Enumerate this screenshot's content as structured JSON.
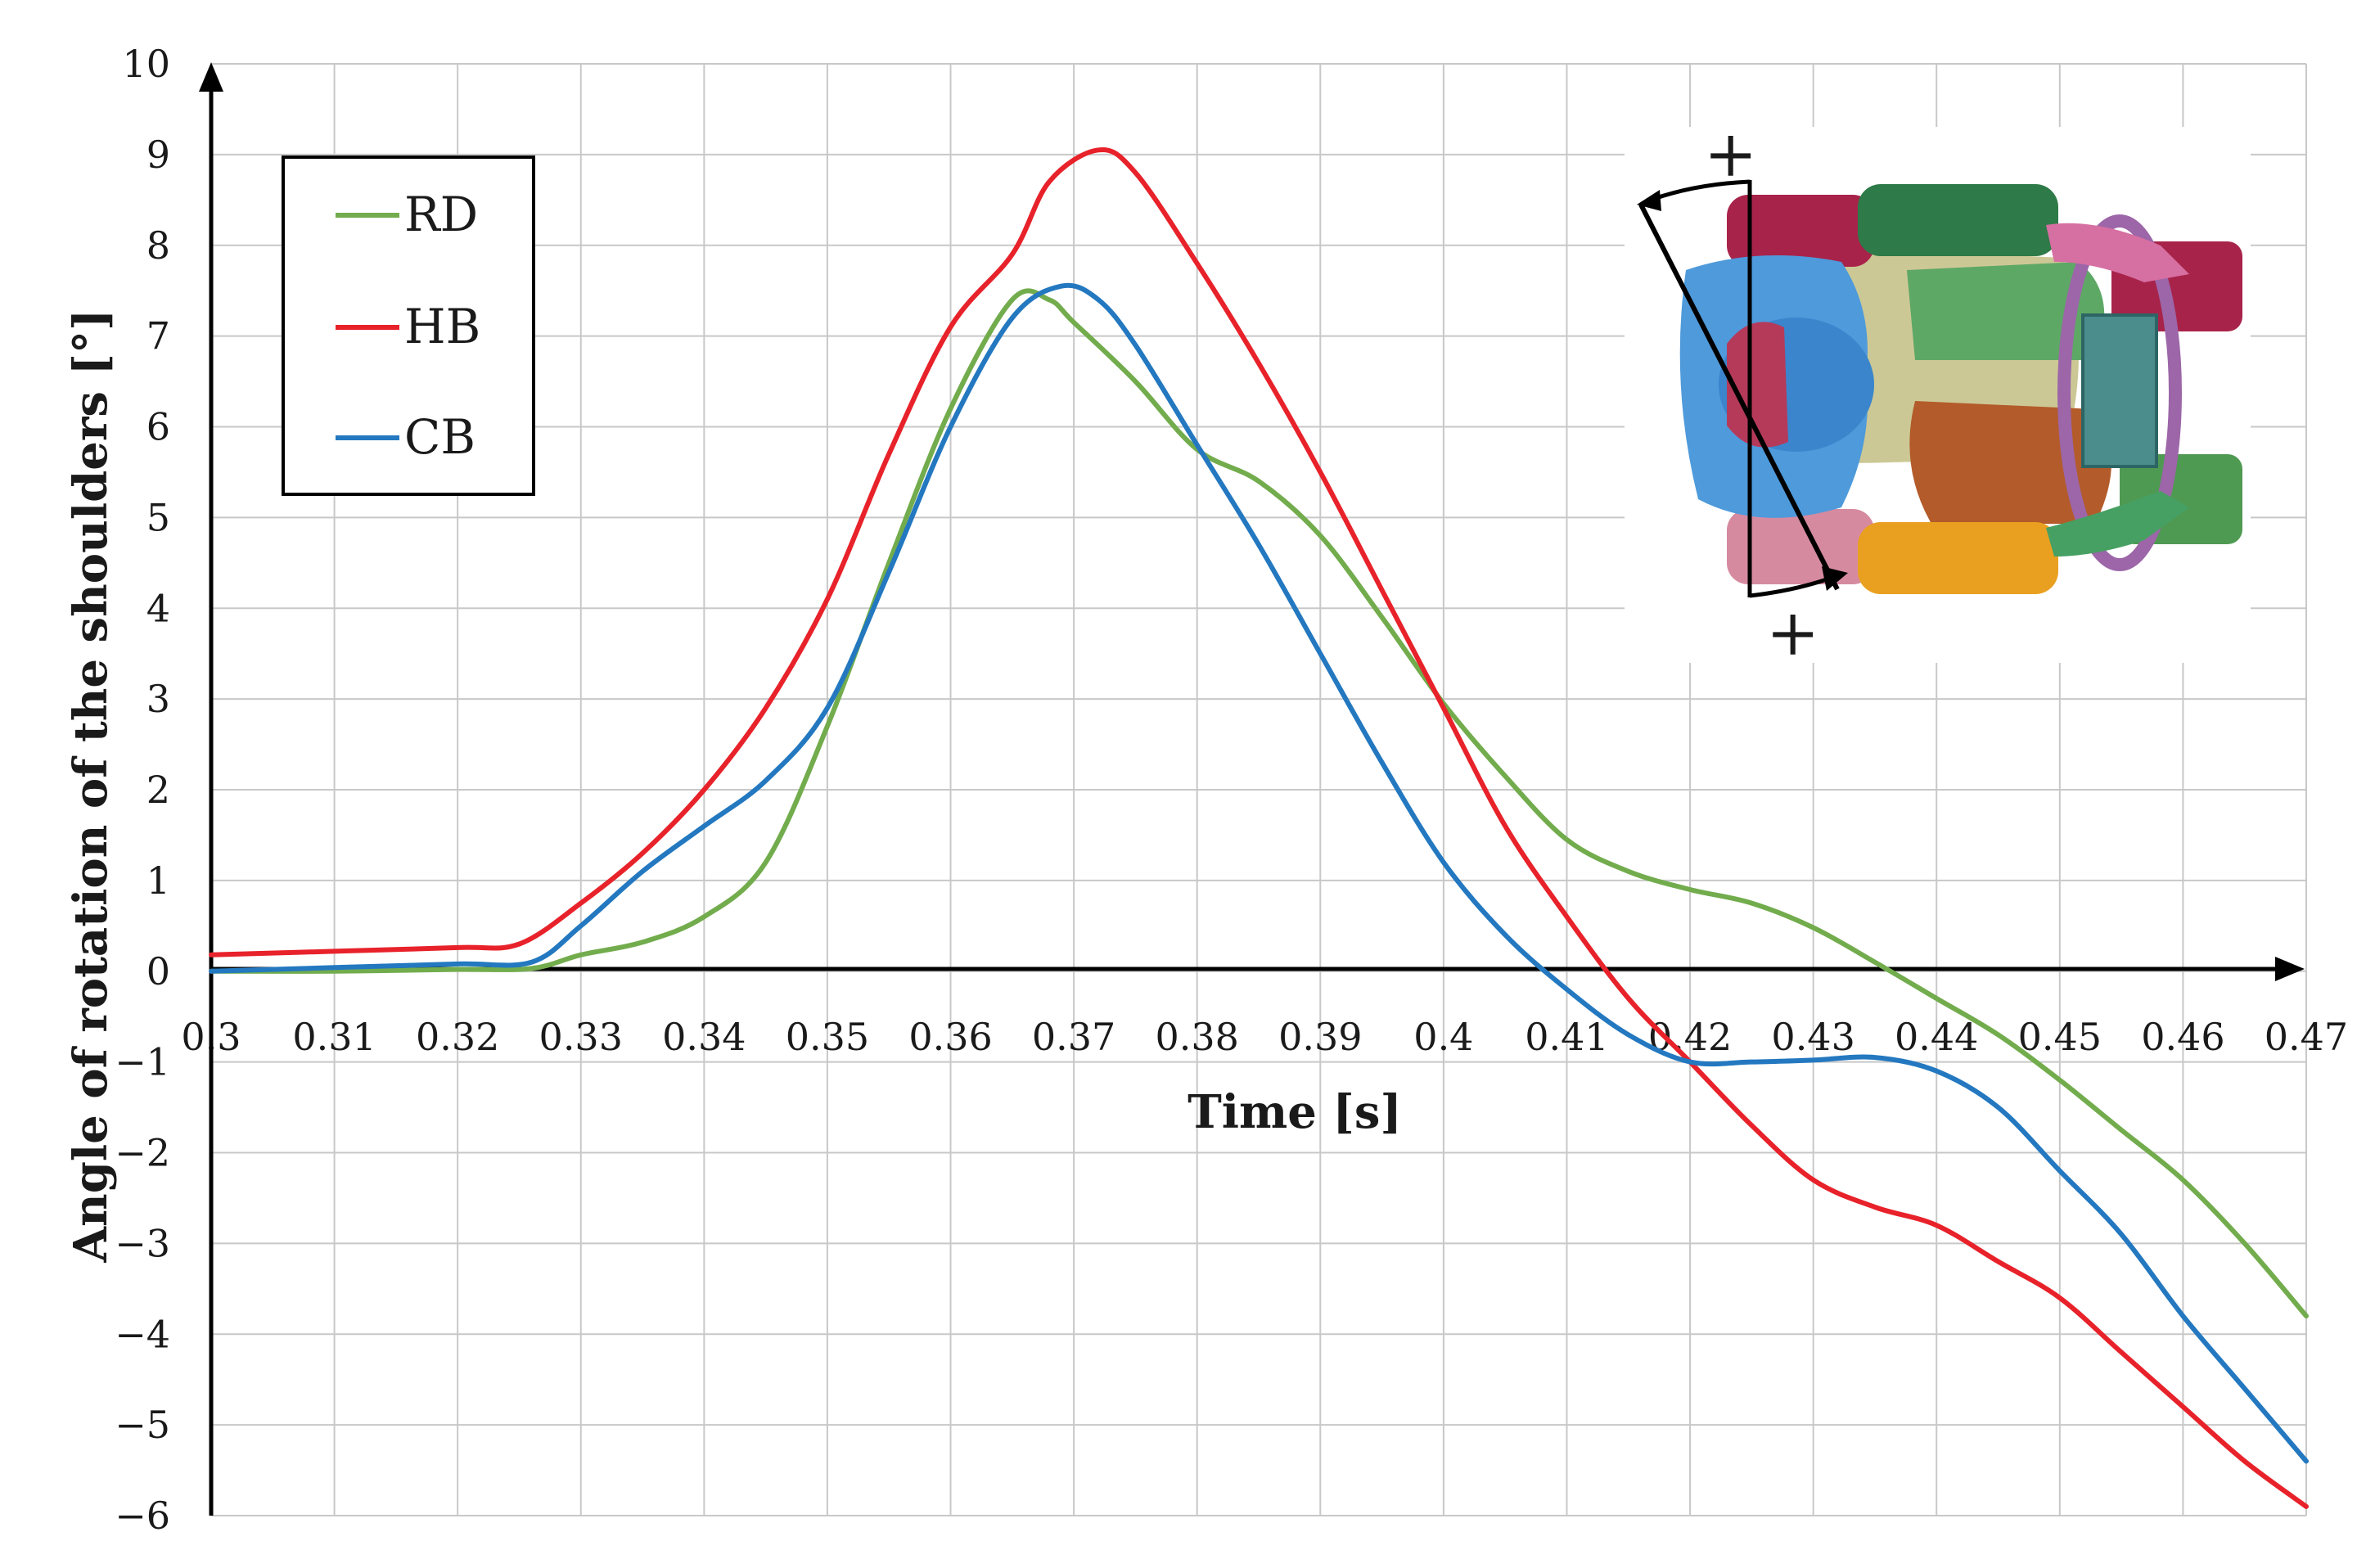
{
  "chart_data": {
    "type": "line",
    "title": "",
    "xlabel": "Time [s]",
    "ylabel": "Angle of rotation of the shoulders [°]",
    "xlim": [
      0.3,
      0.47
    ],
    "ylim": [
      -6,
      10
    ],
    "x_ticks": [
      0.3,
      0.31,
      0.32,
      0.33,
      0.34,
      0.35,
      0.36,
      0.37,
      0.38,
      0.39,
      0.4,
      0.41,
      0.42,
      0.43,
      0.44,
      0.45,
      0.46,
      0.47
    ],
    "x_tick_labels": [
      "0.3",
      "0.31",
      "0.32",
      "0.33",
      "0.34",
      "0.35",
      "0.36",
      "0.37",
      "0.38",
      "0.39",
      "0.4",
      "0.41",
      "0.42",
      "0.43",
      "0.44",
      "0.45",
      "0.46",
      "0.47"
    ],
    "y_ticks": [
      -6,
      -5,
      -4,
      -3,
      -2,
      -1,
      0,
      1,
      2,
      3,
      4,
      5,
      6,
      7,
      8,
      9,
      10
    ],
    "y_tick_labels": [
      "−6",
      "−5",
      "−4",
      "−3",
      "−2",
      "−1",
      "0",
      "1",
      "2",
      "3",
      "4",
      "5",
      "6",
      "7",
      "8",
      "9",
      "10"
    ],
    "grid": true,
    "legend_position": "top-left",
    "series": [
      {
        "name": "RD",
        "color": "#72ac4d",
        "points": [
          [
            0.3,
            0.0
          ],
          [
            0.31,
            0.0
          ],
          [
            0.32,
            0.02
          ],
          [
            0.326,
            0.03
          ],
          [
            0.33,
            0.18
          ],
          [
            0.335,
            0.32
          ],
          [
            0.34,
            0.6
          ],
          [
            0.345,
            1.2
          ],
          [
            0.35,
            2.7
          ],
          [
            0.355,
            4.5
          ],
          [
            0.36,
            6.2
          ],
          [
            0.365,
            7.4
          ],
          [
            0.368,
            7.4
          ],
          [
            0.37,
            7.15
          ],
          [
            0.375,
            6.5
          ],
          [
            0.38,
            5.75
          ],
          [
            0.385,
            5.4
          ],
          [
            0.39,
            4.8
          ],
          [
            0.395,
            3.9
          ],
          [
            0.4,
            2.95
          ],
          [
            0.405,
            2.15
          ],
          [
            0.41,
            1.45
          ],
          [
            0.415,
            1.1
          ],
          [
            0.42,
            0.9
          ],
          [
            0.425,
            0.75
          ],
          [
            0.43,
            0.48
          ],
          [
            0.435,
            0.1
          ],
          [
            0.44,
            -0.3
          ],
          [
            0.445,
            -0.7
          ],
          [
            0.45,
            -1.2
          ],
          [
            0.455,
            -1.75
          ],
          [
            0.46,
            -2.3
          ],
          [
            0.465,
            -3.0
          ],
          [
            0.47,
            -3.8
          ]
        ]
      },
      {
        "name": "HB",
        "color": "#e8222a",
        "points": [
          [
            0.3,
            0.18
          ],
          [
            0.31,
            0.22
          ],
          [
            0.32,
            0.26
          ],
          [
            0.325,
            0.3
          ],
          [
            0.33,
            0.75
          ],
          [
            0.335,
            1.3
          ],
          [
            0.34,
            2.0
          ],
          [
            0.345,
            2.9
          ],
          [
            0.35,
            4.1
          ],
          [
            0.355,
            5.7
          ],
          [
            0.36,
            7.1
          ],
          [
            0.365,
            7.9
          ],
          [
            0.368,
            8.7
          ],
          [
            0.372,
            9.05
          ],
          [
            0.375,
            8.8
          ],
          [
            0.38,
            7.8
          ],
          [
            0.385,
            6.7
          ],
          [
            0.39,
            5.5
          ],
          [
            0.395,
            4.2
          ],
          [
            0.4,
            2.9
          ],
          [
            0.405,
            1.6
          ],
          [
            0.41,
            0.6
          ],
          [
            0.415,
            -0.3
          ],
          [
            0.42,
            -1.0
          ],
          [
            0.425,
            -1.7
          ],
          [
            0.43,
            -2.3
          ],
          [
            0.435,
            -2.6
          ],
          [
            0.44,
            -2.8
          ],
          [
            0.445,
            -3.2
          ],
          [
            0.45,
            -3.6
          ],
          [
            0.455,
            -4.2
          ],
          [
            0.46,
            -4.8
          ],
          [
            0.465,
            -5.4
          ],
          [
            0.47,
            -5.9
          ]
        ]
      },
      {
        "name": "CB",
        "color": "#2378c0",
        "points": [
          [
            0.3,
            0.0
          ],
          [
            0.31,
            0.04
          ],
          [
            0.32,
            0.08
          ],
          [
            0.326,
            0.1
          ],
          [
            0.33,
            0.5
          ],
          [
            0.335,
            1.1
          ],
          [
            0.34,
            1.6
          ],
          [
            0.345,
            2.1
          ],
          [
            0.35,
            2.9
          ],
          [
            0.355,
            4.4
          ],
          [
            0.36,
            6.0
          ],
          [
            0.365,
            7.2
          ],
          [
            0.369,
            7.55
          ],
          [
            0.372,
            7.4
          ],
          [
            0.375,
            6.9
          ],
          [
            0.38,
            5.8
          ],
          [
            0.385,
            4.7
          ],
          [
            0.39,
            3.5
          ],
          [
            0.395,
            2.3
          ],
          [
            0.4,
            1.2
          ],
          [
            0.405,
            0.4
          ],
          [
            0.41,
            -0.2
          ],
          [
            0.415,
            -0.7
          ],
          [
            0.42,
            -1.0
          ],
          [
            0.425,
            -1.0
          ],
          [
            0.43,
            -0.98
          ],
          [
            0.435,
            -0.95
          ],
          [
            0.44,
            -1.1
          ],
          [
            0.445,
            -1.5
          ],
          [
            0.45,
            -2.2
          ],
          [
            0.455,
            -2.9
          ],
          [
            0.46,
            -3.8
          ],
          [
            0.465,
            -4.6
          ],
          [
            0.47,
            -5.4
          ]
        ]
      }
    ],
    "annotations": [
      "+",
      "+"
    ]
  }
}
